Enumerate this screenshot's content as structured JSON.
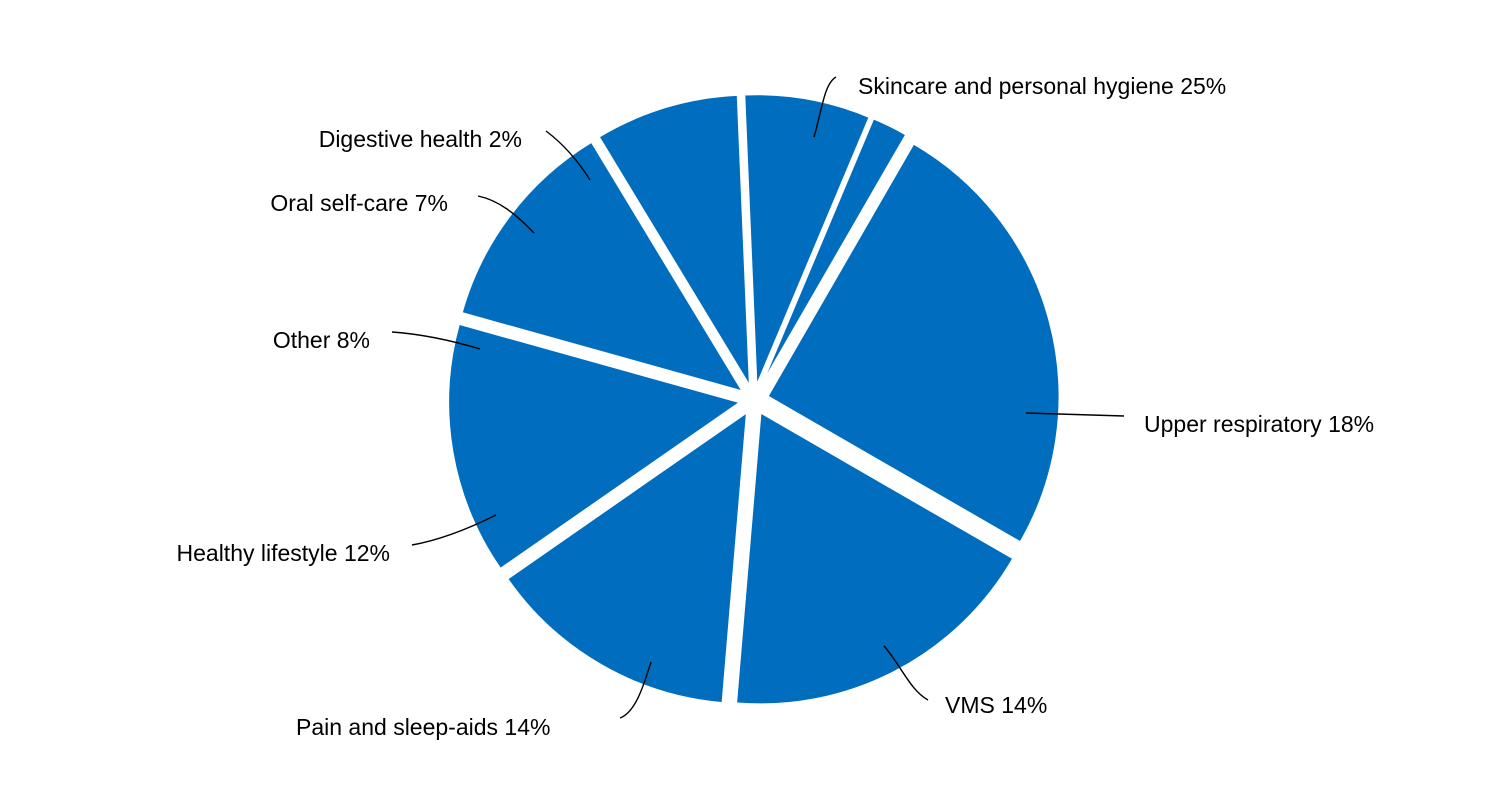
{
  "chart_data": {
    "type": "pie",
    "title": "",
    "slice_color": "#006dbf",
    "background_color": "#ffffff",
    "slices": [
      {
        "name": "Skincare and personal hygiene",
        "value": 25,
        "label": "Skincare and personal hygiene 25%"
      },
      {
        "name": "Upper respiratory",
        "value": 18,
        "label": "Upper respiratory 18%"
      },
      {
        "name": "VMS",
        "value": 14,
        "label": "VMS 14%"
      },
      {
        "name": "Pain and sleep-aids",
        "value": 14,
        "label": "Pain and sleep-aids 14%"
      },
      {
        "name": "Healthy lifestyle",
        "value": 12,
        "label": "Healthy lifestyle 12%"
      },
      {
        "name": "Other",
        "value": 8,
        "label": "Other 8%"
      },
      {
        "name": "Oral self-care",
        "value": 7,
        "label": "Oral self-care 7%"
      },
      {
        "name": "Digestive health",
        "value": 2,
        "label": "Digestive health 2%"
      }
    ]
  }
}
